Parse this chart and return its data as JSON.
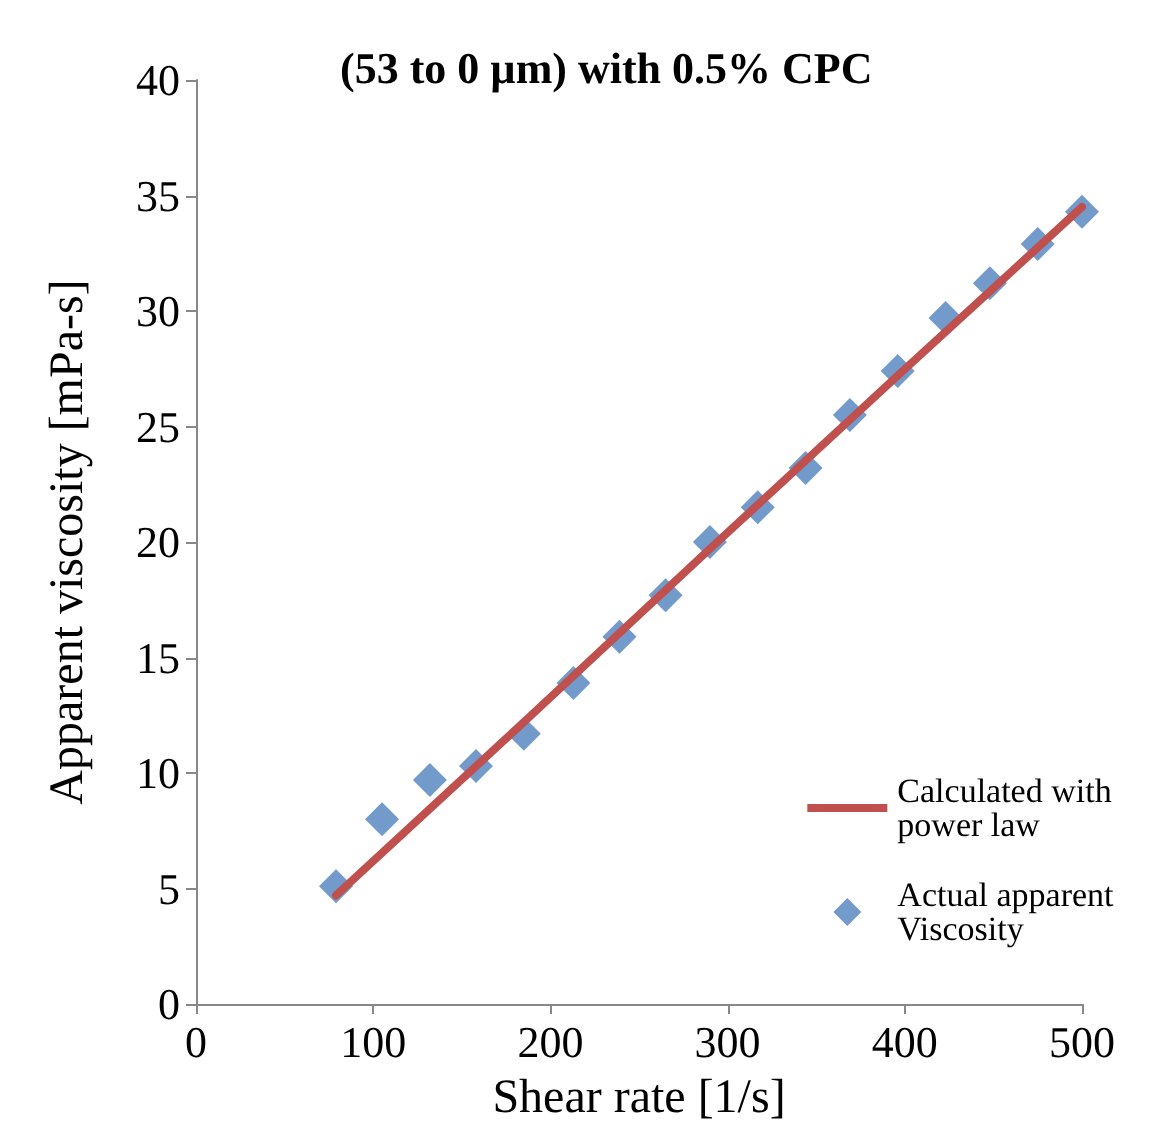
{
  "chart_data": {
    "type": "scatter",
    "title": "(53 to 0 µm) with 0.5% CPC",
    "xlabel": "Shear rate [1/s]",
    "ylabel": "Apparent viscosity [mPa-s]",
    "xlim": [
      0,
      500
    ],
    "xticks": [
      0,
      100,
      200,
      300,
      400,
      500
    ],
    "ylim": [
      0,
      40
    ],
    "yticks": [
      0,
      5,
      10,
      15,
      20,
      25,
      30,
      35,
      40
    ],
    "grid": false,
    "legend": "bottom right",
    "series": [
      {
        "name": "Calculated with power law",
        "type": "line",
        "color": "#c0504d",
        "marker": "none",
        "line_style": "solid",
        "x": [
          79,
          185,
          290,
          396,
          500
        ],
        "values": [
          4.7,
          12.2,
          19.7,
          27.2,
          34.5
        ]
      },
      {
        "name": "Actual apparent Viscosity",
        "color": "#4f81bd",
        "marker": "diamond",
        "x": [
          79,
          105,
          132,
          158,
          185,
          213,
          239,
          265,
          290,
          317,
          344,
          369,
          396,
          423,
          448,
          475,
          500
        ],
        "values": [
          5.1,
          8.0,
          9.7,
          10.3,
          11.7,
          13.9,
          15.9,
          17.7,
          20.0,
          21.5,
          23.2,
          25.5,
          27.4,
          29.7,
          31.2,
          32.9,
          34.3
        ]
      }
    ]
  }
}
